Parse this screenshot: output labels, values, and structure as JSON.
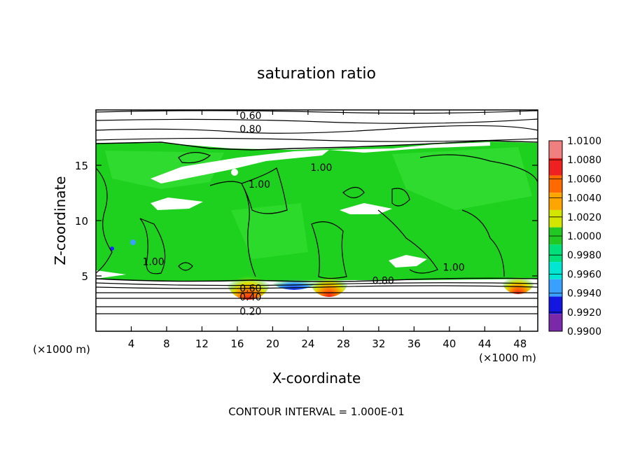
{
  "chart_data": {
    "type": "heatmap",
    "title": "saturation ratio",
    "xlabel": "X-coordinate",
    "ylabel": "Z-coordinate",
    "x_unit_note": "(×1000 m)",
    "y_unit_note": "(×1000 m)",
    "xlim": [
      0,
      50
    ],
    "ylim": [
      0,
      20
    ],
    "x_ticks": [
      4,
      8,
      12,
      16,
      20,
      24,
      28,
      32,
      36,
      40,
      44,
      48
    ],
    "y_ticks": [
      5,
      10,
      15
    ],
    "footer": "CONTOUR INTERVAL = 1.000E-01",
    "contour_labels": [
      {
        "text": "0.60",
        "x": 17.5,
        "z": 19.5
      },
      {
        "text": "0.80",
        "x": 17.5,
        "z": 18.3
      },
      {
        "text": "1.00",
        "x": 18.5,
        "z": 13.3
      },
      {
        "text": "1.00",
        "x": 25.5,
        "z": 14.8
      },
      {
        "text": "1.00",
        "x": 6.5,
        "z": 6.3
      },
      {
        "text": "1.00",
        "x": 40.5,
        "z": 5.8
      },
      {
        "text": "0.80",
        "x": 32.5,
        "z": 4.6
      },
      {
        "text": "0.60",
        "x": 17.5,
        "z": 3.9
      },
      {
        "text": "0.40",
        "x": 17.5,
        "z": 3.1
      },
      {
        "text": "0.20",
        "x": 17.5,
        "z": 1.8
      }
    ],
    "colorbar": {
      "ticks": [
        "1.0100",
        "1.0080",
        "1.0060",
        "1.0040",
        "1.0020",
        "1.0000",
        "0.9980",
        "0.9960",
        "0.9940",
        "0.9920",
        "0.9900"
      ],
      "colors": [
        "#f08080",
        "#ee2020",
        "#ff6a00",
        "#ffa500",
        "#d2e600",
        "#22c922",
        "#00e07a",
        "#00e6d2",
        "#3aa0ff",
        "#1515e0",
        "#7a2aa8"
      ]
    },
    "field_colors": {
      "background_green": "#1ed11e",
      "light_green": "#34e034",
      "blue": "#1a2cff",
      "orange": "#ff7a00",
      "red": "#ee1c1c",
      "white": "#ffffff"
    }
  }
}
